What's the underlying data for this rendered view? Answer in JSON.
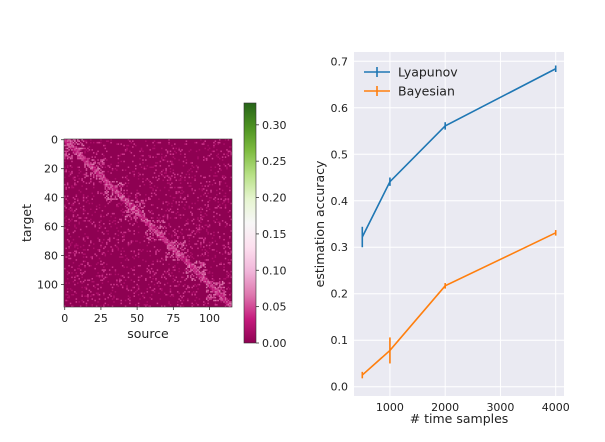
{
  "chart_data": [
    {
      "type": "heatmap",
      "title": "",
      "xlabel": "source",
      "ylabel": "target",
      "x_ticks": [
        "0",
        "25",
        "50",
        "75",
        "100"
      ],
      "y_ticks": [
        "0",
        "20",
        "40",
        "60",
        "80",
        "100"
      ],
      "xlim": [
        0,
        116
      ],
      "ylim": [
        0,
        116
      ],
      "n": 116,
      "colormap": "PiYG",
      "colorbar": {
        "ticks": [
          "0.00",
          "0.05",
          "0.10",
          "0.15",
          "0.20",
          "0.25",
          "0.30"
        ],
        "range": [
          0,
          0.33
        ],
        "colors": [
          "#8e0152",
          "#c51b7d",
          "#de77ae",
          "#f1b6da",
          "#fde0ef",
          "#f7f7f7",
          "#e6f5d0",
          "#b8e186",
          "#7fbc41",
          "#4d9221",
          "#276419"
        ]
      }
    },
    {
      "type": "line",
      "title": "",
      "xlabel": "# time samples",
      "ylabel": "estimation accuracy",
      "xlim": [
        350,
        4150
      ],
      "ylim": [
        -0.02,
        0.72
      ],
      "x_ticks": [
        1000,
        2000,
        3000,
        4000
      ],
      "y_ticks": [
        0.0,
        0.1,
        0.2,
        0.3,
        0.4,
        0.5,
        0.6,
        0.7
      ],
      "y_tick_labels": [
        "0.0",
        "0.1",
        "0.2",
        "0.3",
        "0.4",
        "0.5",
        "0.6",
        "0.7"
      ],
      "grid": true,
      "background": "#eaeaf2",
      "legend_position": "top-left",
      "x": [
        500,
        1000,
        2000,
        4000
      ],
      "series": [
        {
          "name": "Lyapunov",
          "color": "#1f77b4",
          "values": [
            0.322,
            0.441,
            0.561,
            0.684
          ],
          "errors": [
            0.022,
            0.009,
            0.008,
            0.007
          ]
        },
        {
          "name": "Bayesian",
          "color": "#ff7f0e",
          "values": [
            0.025,
            0.078,
            0.217,
            0.331
          ],
          "errors": [
            0.007,
            0.028,
            0.006,
            0.006
          ]
        }
      ]
    }
  ]
}
